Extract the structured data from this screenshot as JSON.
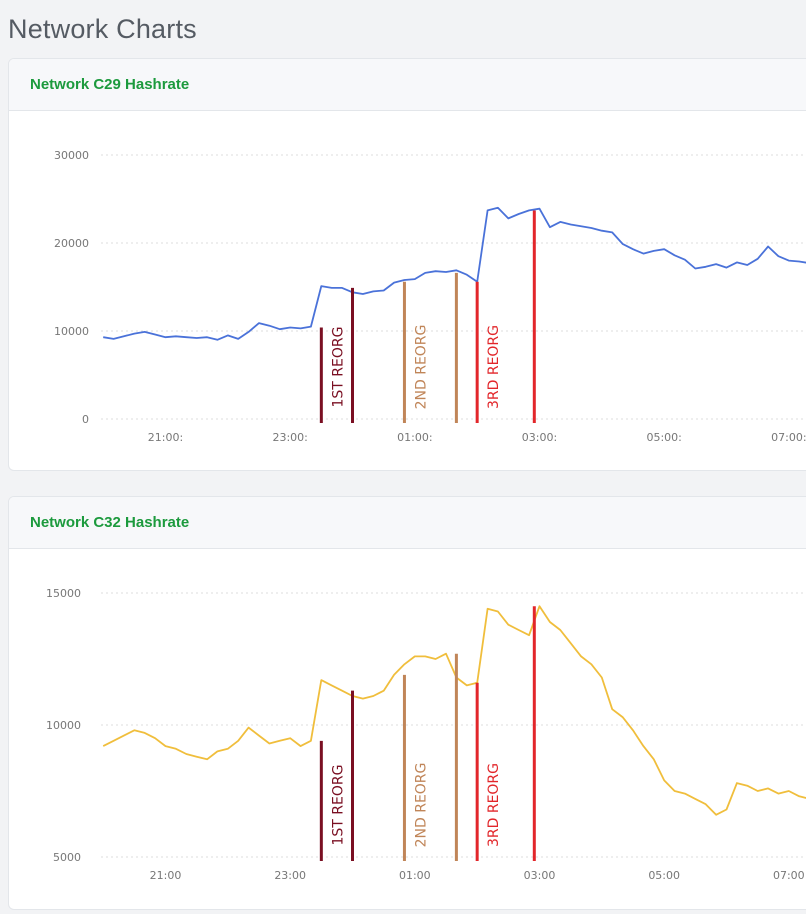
{
  "page": {
    "title": "Network Charts"
  },
  "colors": {
    "c29_line": "#4a72d9",
    "c32_line": "#f0be3c",
    "reorg1": "#7a0f22",
    "reorg2": "#c08558",
    "reorg3": "#e2262a",
    "header_text": "#1c9a3d"
  },
  "chart_data": [
    {
      "type": "line",
      "title": "Network C29 Hashrate",
      "xlabel": "",
      "ylabel": "",
      "ylim": [
        0,
        30000
      ],
      "yticks": [
        "30000",
        "20000",
        "10000",
        "0"
      ],
      "xticks": [
        "21:00:",
        "23:00:",
        "01:00:",
        "03:00:",
        "05:00:",
        "07:00:"
      ],
      "grid": true,
      "series": [
        {
          "color": "#4a72d9",
          "x": [
            "20:00",
            "20:10",
            "20:20",
            "20:30",
            "20:40",
            "20:50",
            "21:00",
            "21:10",
            "21:20",
            "21:30",
            "21:40",
            "21:50",
            "22:00",
            "22:10",
            "22:20",
            "22:30",
            "22:40",
            "22:50",
            "23:00",
            "23:10",
            "23:20",
            "23:30",
            "23:40",
            "23:50",
            "00:00",
            "00:10",
            "00:20",
            "00:30",
            "00:40",
            "00:50",
            "01:00",
            "01:10",
            "01:20",
            "01:30",
            "01:40",
            "01:50",
            "02:00",
            "02:10",
            "02:20",
            "02:30",
            "02:40",
            "02:50",
            "03:00",
            "03:10",
            "03:20",
            "03:30",
            "03:40",
            "03:50",
            "04:00",
            "04:10",
            "04:20",
            "04:30",
            "04:40",
            "04:50",
            "05:00",
            "05:10",
            "05:20",
            "05:30",
            "05:40",
            "05:50",
            "06:00",
            "06:10",
            "06:20",
            "06:30",
            "06:40",
            "06:50",
            "07:00",
            "07:10",
            "07:20"
          ],
          "values": [
            9300,
            9100,
            9400,
            9700,
            9900,
            9600,
            9300,
            9400,
            9300,
            9200,
            9300,
            9000,
            9500,
            9100,
            9900,
            10900,
            10600,
            10200,
            10400,
            10300,
            10500,
            15100,
            14900,
            14900,
            14400,
            14200,
            14500,
            14600,
            15500,
            15800,
            15900,
            16600,
            16800,
            16700,
            16900,
            16400,
            15600,
            23700,
            24000,
            22800,
            23300,
            23700,
            23900,
            21800,
            22400,
            22100,
            21900,
            21700,
            21400,
            21200,
            19900,
            19300,
            18800,
            19100,
            19300,
            18600,
            18100,
            17100,
            17300,
            17600,
            17200,
            17800,
            17500,
            18200,
            19600,
            18500,
            18000,
            17900,
            17700
          ]
        }
      ],
      "annotations": [
        {
          "time": "23:30",
          "label": "1ST REORG",
          "value": 10400,
          "color": "#7a0f22"
        },
        {
          "time": "00:00",
          "label": "",
          "value": 14900,
          "color": "#7a0f22"
        },
        {
          "time": "00:50",
          "label": "2ND REORG",
          "value": 15600,
          "color": "#c08558"
        },
        {
          "time": "01:40",
          "label": "",
          "value": 16600,
          "color": "#c08558"
        },
        {
          "time": "02:00",
          "label": "3RD REORG",
          "value": 15600,
          "color": "#e2262a"
        },
        {
          "time": "02:55",
          "label": "",
          "value": 23700,
          "color": "#e2262a"
        }
      ]
    },
    {
      "type": "line",
      "title": "Network C32 Hashrate",
      "xlabel": "",
      "ylabel": "",
      "ylim": [
        5000,
        15000
      ],
      "yticks": [
        "15000",
        "10000",
        "5000"
      ],
      "xticks": [
        "21:00",
        "23:00",
        "01:00",
        "03:00",
        "05:00",
        "07:00"
      ],
      "grid": true,
      "series": [
        {
          "color": "#f0be3c",
          "x": [
            "20:00",
            "20:10",
            "20:20",
            "20:30",
            "20:40",
            "20:50",
            "21:00",
            "21:10",
            "21:20",
            "21:30",
            "21:40",
            "21:50",
            "22:00",
            "22:10",
            "22:20",
            "22:30",
            "22:40",
            "22:50",
            "23:00",
            "23:10",
            "23:20",
            "23:30",
            "23:40",
            "23:50",
            "00:00",
            "00:10",
            "00:20",
            "00:30",
            "00:40",
            "00:50",
            "01:00",
            "01:10",
            "01:20",
            "01:30",
            "01:40",
            "01:50",
            "02:00",
            "02:10",
            "02:20",
            "02:30",
            "02:40",
            "02:50",
            "03:00",
            "03:10",
            "03:20",
            "03:30",
            "03:40",
            "03:50",
            "04:00",
            "04:10",
            "04:20",
            "04:30",
            "04:40",
            "04:50",
            "05:00",
            "05:10",
            "05:20",
            "05:30",
            "05:40",
            "05:50",
            "06:00",
            "06:10",
            "06:20",
            "06:30",
            "06:40",
            "06:50",
            "07:00",
            "07:10",
            "07:20"
          ],
          "values": [
            9200,
            9400,
            9600,
            9800,
            9700,
            9500,
            9200,
            9100,
            8900,
            8800,
            8700,
            9000,
            9100,
            9400,
            9900,
            9600,
            9300,
            9400,
            9500,
            9200,
            9400,
            11700,
            11500,
            11300,
            11100,
            11000,
            11100,
            11300,
            11900,
            12300,
            12600,
            12600,
            12500,
            12700,
            11800,
            11500,
            11600,
            14400,
            14300,
            13800,
            13600,
            13400,
            14500,
            13900,
            13600,
            13100,
            12600,
            12300,
            11800,
            10600,
            10300,
            9800,
            9200,
            8700,
            7900,
            7500,
            7400,
            7200,
            7000,
            6600,
            6800,
            7800,
            7700,
            7500,
            7600,
            7400,
            7500,
            7300,
            7200
          ]
        }
      ],
      "annotations": [
        {
          "time": "23:30",
          "label": "1ST REORG",
          "value": 9400,
          "color": "#7a0f22"
        },
        {
          "time": "00:00",
          "label": "",
          "value": 11300,
          "color": "#7a0f22"
        },
        {
          "time": "00:50",
          "label": "2ND REORG",
          "value": 11900,
          "color": "#c08558"
        },
        {
          "time": "01:40",
          "label": "",
          "value": 12700,
          "color": "#c08558"
        },
        {
          "time": "02:00",
          "label": "3RD REORG",
          "value": 11600,
          "color": "#e2262a"
        },
        {
          "time": "02:55",
          "label": "",
          "value": 14500,
          "color": "#e2262a"
        }
      ]
    }
  ]
}
